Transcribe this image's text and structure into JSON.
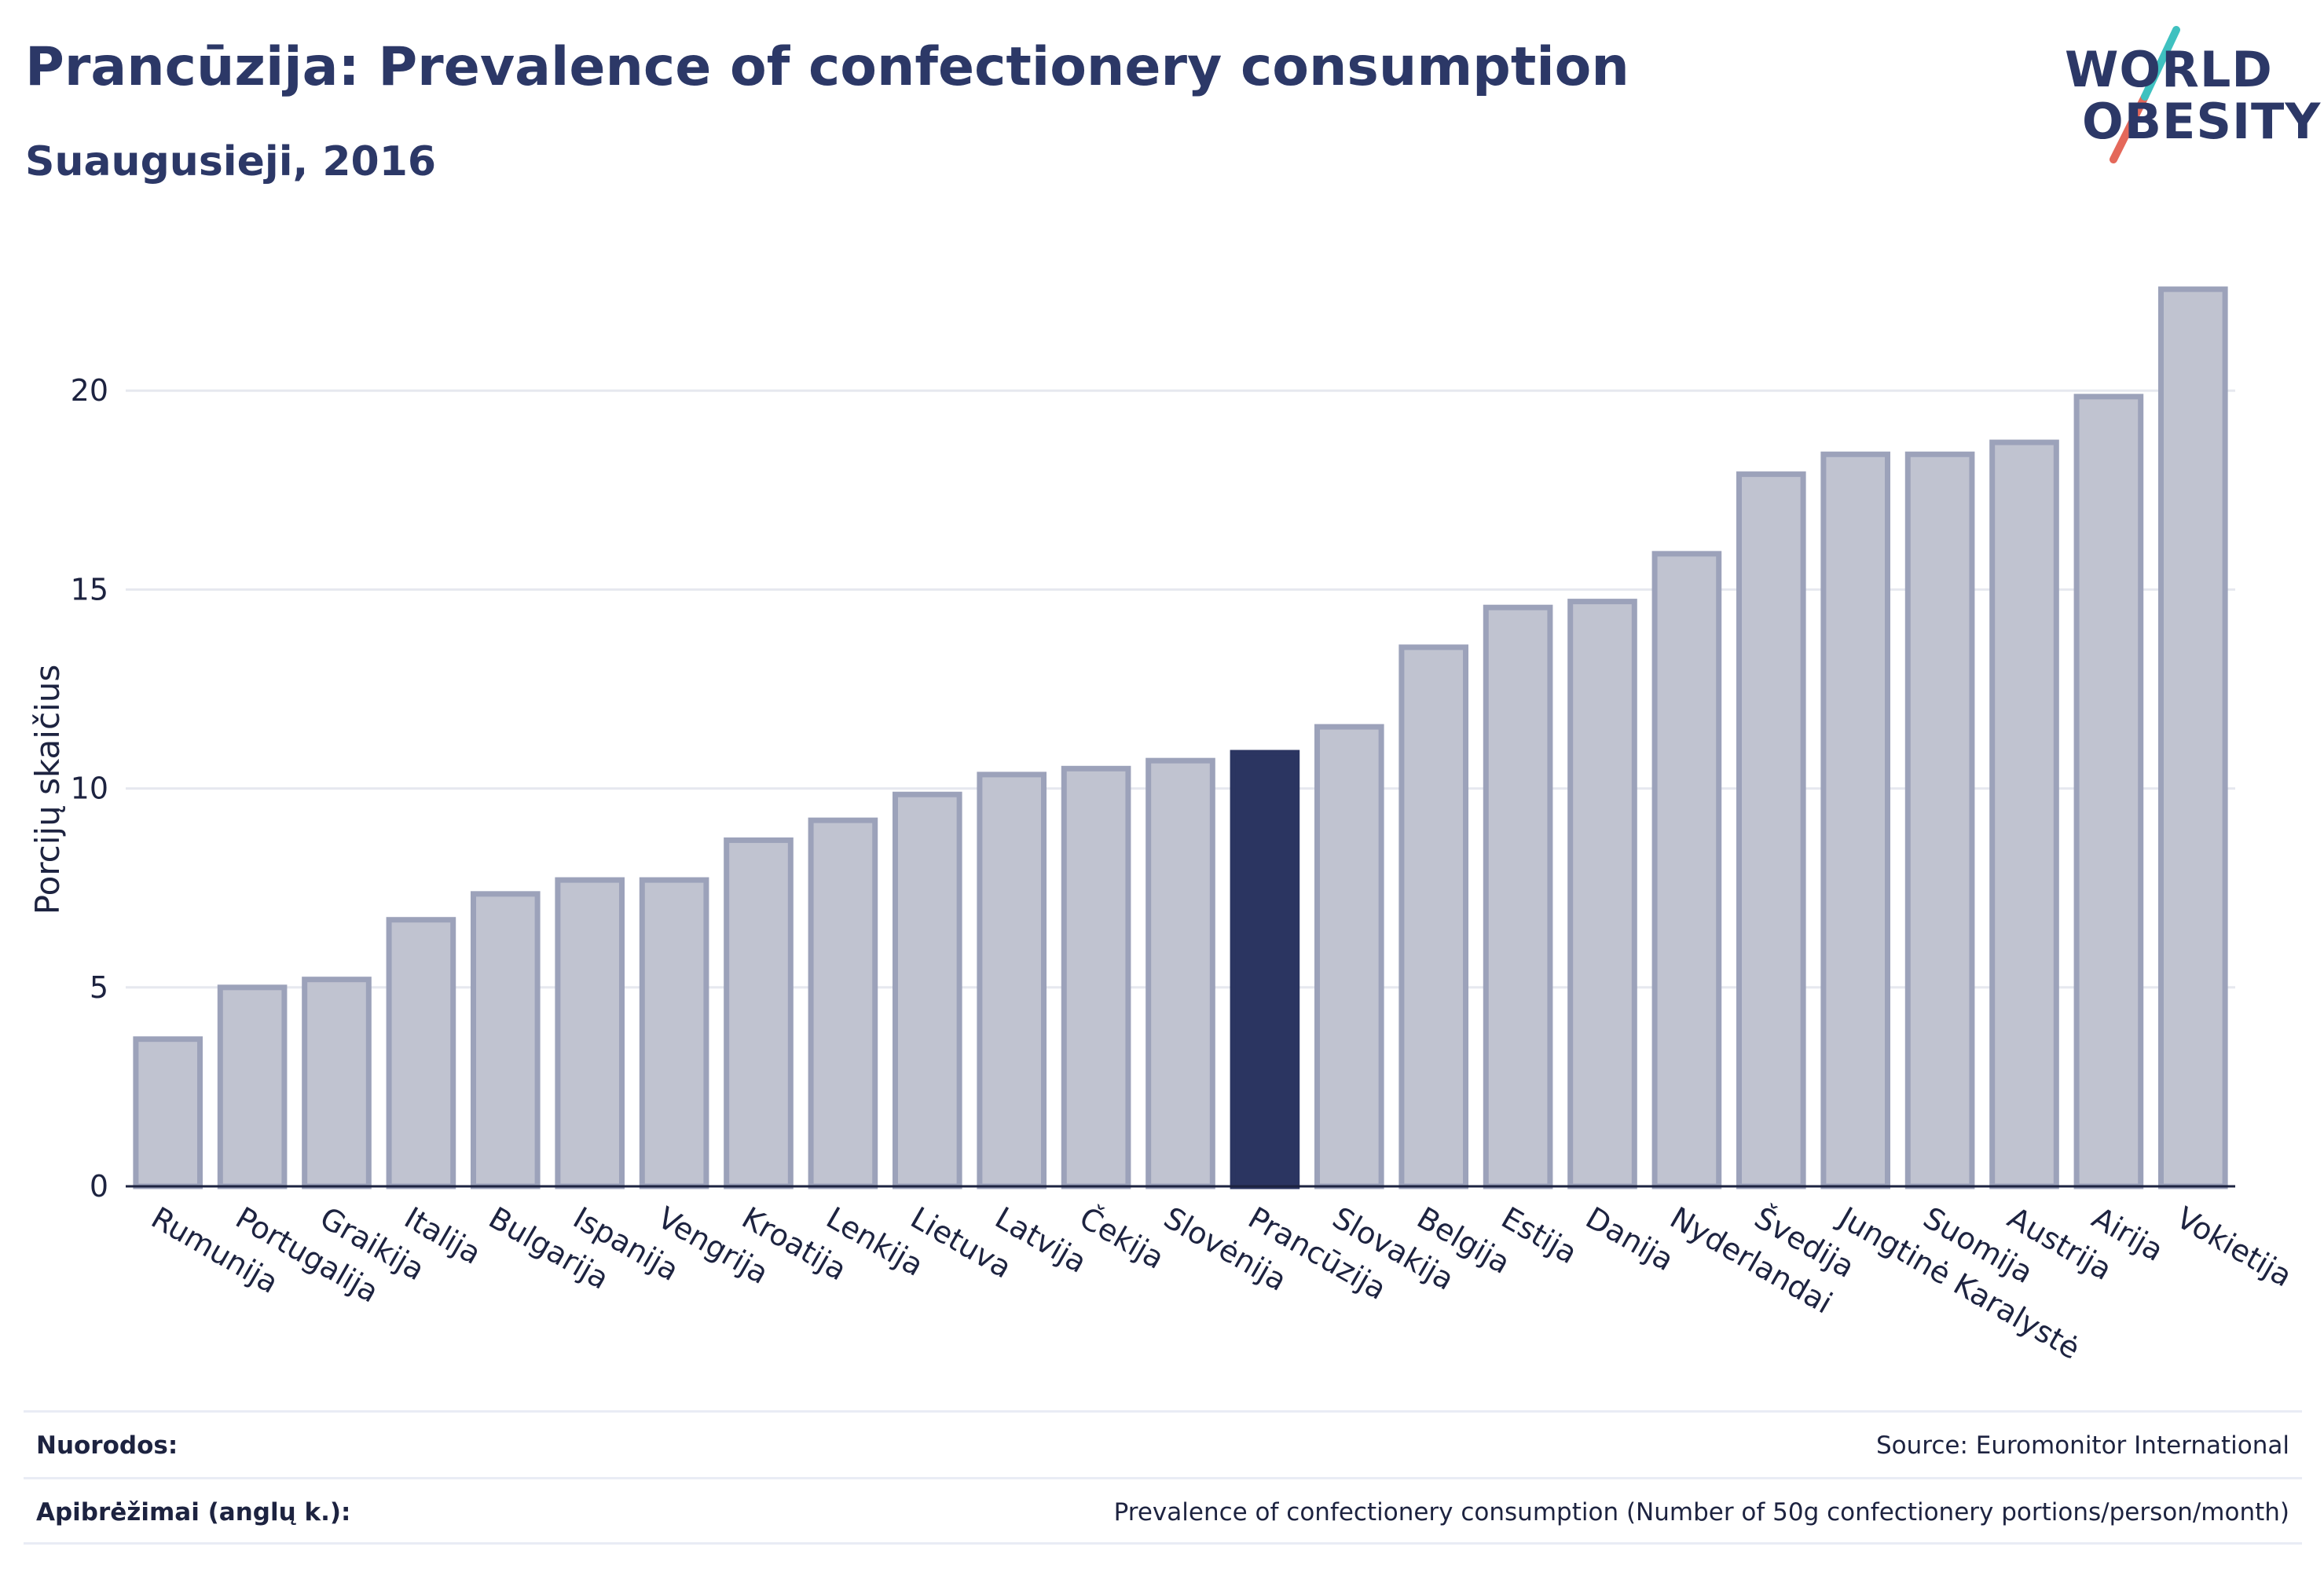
{
  "header": {
    "title": "Prancūzija: Prevalence of confectionery consumption",
    "subtitle": "Suaugusieji, 2016"
  },
  "logo": {
    "line1": "WORLD",
    "line2": "OBESITY",
    "slash_colors": [
      "#3fc1c0",
      "#e4685a"
    ]
  },
  "chart_data": {
    "type": "bar",
    "ylabel": "Porcijų skaičius",
    "xlabel": "",
    "ylim": [
      0,
      23.5
    ],
    "yticks": [
      0,
      5,
      10,
      15,
      20
    ],
    "grid": true,
    "highlight": "Prancūzija",
    "colors": {
      "bar": "#c0c3d0",
      "bar_stroke": "#9ca2ba",
      "highlight": "#2b3561",
      "grid": "#e6e8ef"
    },
    "categories": [
      "Rumunija",
      "Portugalija",
      "Graikija",
      "Italija",
      "Bulgarija",
      "Ispanija",
      "Vengrija",
      "Kroatija",
      "Lenkija",
      "Lietuva",
      "Latvija",
      "Čekija",
      "Slovėnija",
      "Prancūzija",
      "Slovakija",
      "Belgija",
      "Estija",
      "Danija",
      "Nyderlandai",
      "Švedija",
      "Jungtinė Karalystė",
      "Suomija",
      "Austrija",
      "Airija",
      "Vokietija"
    ],
    "values": [
      3.7,
      5.0,
      5.2,
      6.7,
      7.35,
      7.7,
      7.7,
      8.7,
      9.2,
      9.85,
      10.35,
      10.5,
      10.7,
      10.9,
      11.55,
      13.55,
      14.55,
      14.7,
      15.9,
      17.9,
      18.4,
      18.4,
      18.7,
      19.85,
      22.55
    ]
  },
  "footer": {
    "references_label": "Nuorodos:",
    "references_value": "Source: Euromonitor International",
    "definitions_label": "Apibrėžimai (anglų k.):",
    "definitions_value": "Prevalence of confectionery consumption (Number of 50g confectionery portions/person/month)"
  }
}
